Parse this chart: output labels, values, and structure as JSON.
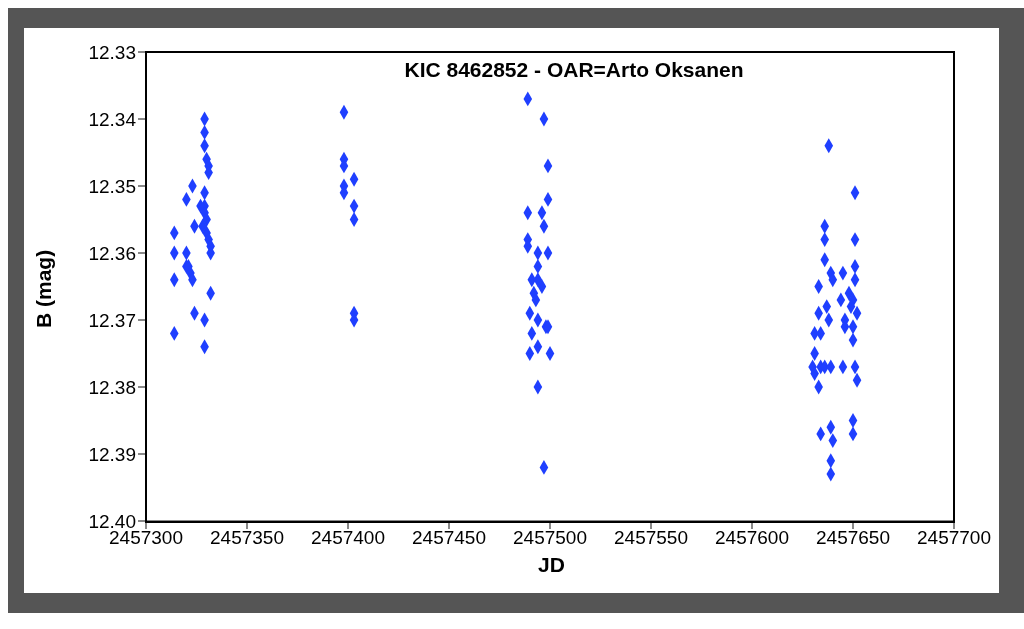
{
  "chart_data": {
    "type": "scatter",
    "title": "KIC 8462852 - OAR=Arto Oksanen",
    "xlabel": "JD",
    "ylabel": "B (mag)",
    "x": [
      2457314,
      2457314,
      2457314,
      2457314,
      2457320,
      2457320,
      2457320,
      2457321,
      2457322,
      2457323,
      2457323,
      2457324,
      2457324,
      2457329,
      2457329,
      2457329,
      2457329,
      2457329,
      2457330,
      2457331,
      2457331,
      2457329,
      2457329,
      2457329,
      2457330,
      2457330,
      2457331,
      2457332,
      2457332,
      2457332,
      2457328,
      2457327,
      2457398,
      2457398,
      2457398,
      2457398,
      2457403,
      2457398,
      2457403,
      2457403,
      2457403,
      2457403,
      2457489,
      2457497,
      2457499,
      2457499,
      2457489,
      2457496,
      2457497,
      2457489,
      2457489,
      2457494,
      2457499,
      2457494,
      2457491,
      2457494,
      2457492,
      2457496,
      2457493,
      2457490,
      2457494,
      2457498,
      2457491,
      2457499,
      2457490,
      2457494,
      2457500,
      2457494,
      2457497,
      2457638,
      2457651,
      2457636,
      2457636,
      2457651,
      2457636,
      2457639,
      2457645,
      2457651,
      2457651,
      2457633,
      2457640,
      2457648,
      2457644,
      2457650,
      2457646,
      2457649,
      2457652,
      2457633,
      2457638,
      2457646,
      2457650,
      2457631,
      2457631,
      2457650,
      2457630,
      2457631,
      2457651,
      2457634,
      2457636,
      2457639,
      2457645,
      2457652,
      2457633,
      2457634,
      2457639,
      2457650,
      2457650,
      2457640,
      2457639,
      2457639,
      2457634,
      2457637
    ],
    "values": [
      12.357,
      12.36,
      12.364,
      12.372,
      12.352,
      12.36,
      12.362,
      12.362,
      12.363,
      12.35,
      12.364,
      12.356,
      12.369,
      12.37,
      12.374,
      12.34,
      12.342,
      12.344,
      12.346,
      12.347,
      12.348,
      12.351,
      12.353,
      12.354,
      12.355,
      12.357,
      12.358,
      12.359,
      12.36,
      12.366,
      12.356,
      12.353,
      12.339,
      12.346,
      12.347,
      12.35,
      12.349,
      12.351,
      12.353,
      12.355,
      12.369,
      12.37,
      12.337,
      12.34,
      12.347,
      12.352,
      12.354,
      12.354,
      12.356,
      12.358,
      12.359,
      12.36,
      12.36,
      12.362,
      12.364,
      12.364,
      12.366,
      12.365,
      12.367,
      12.369,
      12.37,
      12.371,
      12.372,
      12.371,
      12.375,
      12.374,
      12.375,
      12.38,
      12.392,
      12.344,
      12.351,
      12.356,
      12.358,
      12.358,
      12.361,
      12.363,
      12.363,
      12.362,
      12.364,
      12.365,
      12.364,
      12.366,
      12.367,
      12.367,
      12.37,
      12.368,
      12.369,
      12.369,
      12.37,
      12.371,
      12.371,
      12.372,
      12.375,
      12.373,
      12.377,
      12.378,
      12.377,
      12.377,
      12.377,
      12.377,
      12.377,
      12.379,
      12.38,
      12.387,
      12.386,
      12.385,
      12.387,
      12.388,
      12.391,
      12.393,
      12.372,
      12.368
    ],
    "color": "#1f3fff",
    "marker": "diamond",
    "grid": false,
    "xlim": [
      2457300,
      2457700
    ],
    "xticks": [
      2457300,
      2457350,
      2457400,
      2457450,
      2457500,
      2457550,
      2457600,
      2457650,
      2457700
    ],
    "ylim": [
      12.4,
      12.33
    ],
    "yticks": [
      12.33,
      12.34,
      12.35,
      12.36,
      12.37,
      12.38,
      12.39,
      {
        "value": 12.4,
        "label": "12.40"
      }
    ]
  }
}
